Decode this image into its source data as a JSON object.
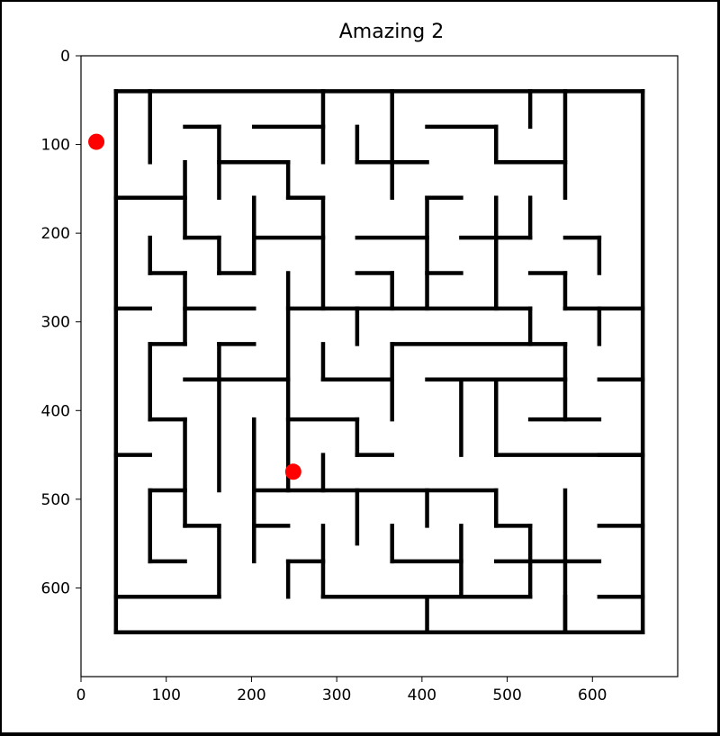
{
  "title": "Amazing 2",
  "axes": {
    "xlim": [
      0,
      700
    ],
    "ylim": [
      700,
      0
    ],
    "x_ticks": [
      0,
      100,
      200,
      300,
      400,
      500,
      600
    ],
    "y_ticks": [
      0,
      100,
      200,
      300,
      400,
      500,
      600
    ]
  },
  "maze": {
    "cell_size": 40.5,
    "origin": [
      41,
      99
    ],
    "cols": 15,
    "rows": 14,
    "wall_color": "#000000",
    "walls": [
      [
        41,
        99,
        659,
        99
      ],
      [
        41,
        659,
        659,
        659
      ],
      [
        41,
        160,
        41,
        659
      ],
      [
        659,
        99,
        659,
        659
      ],
      [
        81,
        99,
        81,
        120
      ],
      [
        81,
        99,
        81,
        120
      ],
      [
        81,
        99,
        81,
        120
      ],
      [
        81,
        99,
        81,
        120
      ],
      [
        81,
        99,
        81,
        120
      ],
      [
        81,
        99,
        81,
        120
      ],
      [
        81,
        99,
        81,
        120
      ],
      [
        81,
        99,
        81,
        120
      ],
      [
        81,
        99,
        81,
        120
      ],
      [
        81,
        99,
        81,
        120
      ],
      [
        81,
        99,
        81,
        120
      ],
      [
        81,
        99,
        81,
        120
      ],
      [
        81,
        99,
        81,
        120
      ]
    ],
    "segments": [
      [
        41,
        99,
        41,
        135
      ],
      [
        81,
        99,
        81,
        180
      ],
      [
        122,
        140,
        162,
        140
      ],
      [
        162,
        140,
        162,
        220
      ],
      [
        203,
        140,
        284,
        140
      ],
      [
        284,
        99,
        284,
        180
      ],
      [
        365,
        99,
        365,
        220
      ],
      [
        324,
        140,
        324,
        180
      ],
      [
        324,
        180,
        406,
        180
      ],
      [
        406,
        140,
        487,
        140
      ],
      [
        487,
        140,
        487,
        180
      ],
      [
        487,
        180,
        568,
        180
      ],
      [
        568,
        180,
        568,
        220
      ],
      [
        527,
        99,
        527,
        140
      ],
      [
        568,
        99,
        568,
        300
      ],
      [
        162,
        180,
        243,
        180
      ],
      [
        243,
        180,
        243,
        220
      ],
      [
        243,
        220,
        284,
        220
      ],
      [
        284,
        220,
        284,
        340
      ],
      [
        41,
        220,
        122,
        220
      ],
      [
        122,
        180,
        122,
        260
      ],
      [
        122,
        260,
        162,
        260
      ],
      [
        162,
        260,
        162,
        300
      ],
      [
        162,
        300,
        203,
        300
      ],
      [
        203,
        220,
        203,
        300
      ],
      [
        203,
        260,
        284,
        260
      ],
      [
        324,
        260,
        406,
        260
      ],
      [
        406,
        220,
        406,
        340
      ],
      [
        527,
        220,
        527,
        260
      ],
      [
        446,
        260,
        527,
        260
      ],
      [
        487,
        220,
        487,
        340
      ],
      [
        406,
        220,
        446,
        220
      ],
      [
        81,
        260,
        81,
        300
      ],
      [
        81,
        300,
        122,
        300
      ],
      [
        122,
        300,
        122,
        380
      ],
      [
        122,
        380,
        81,
        380
      ],
      [
        81,
        380,
        81,
        460
      ],
      [
        81,
        460,
        122,
        460
      ],
      [
        122,
        340,
        203,
        340
      ],
      [
        41,
        340,
        81,
        340
      ],
      [
        243,
        300,
        243,
        540
      ],
      [
        243,
        340,
        324,
        340
      ],
      [
        324,
        340,
        324,
        380
      ],
      [
        243,
        340,
        406,
        340
      ],
      [
        324,
        300,
        365,
        300
      ],
      [
        365,
        300,
        365,
        340
      ],
      [
        406,
        340,
        527,
        340
      ],
      [
        527,
        340,
        527,
        380
      ],
      [
        406,
        300,
        446,
        300
      ],
      [
        527,
        300,
        568,
        300
      ],
      [
        568,
        260,
        608,
        260
      ],
      [
        608,
        260,
        608,
        300
      ],
      [
        568,
        300,
        568,
        340
      ],
      [
        568,
        340,
        659,
        340
      ],
      [
        608,
        340,
        608,
        380
      ],
      [
        162,
        380,
        203,
        380
      ],
      [
        162,
        380,
        162,
        540
      ],
      [
        122,
        420,
        243,
        420
      ],
      [
        284,
        380,
        284,
        420
      ],
      [
        284,
        420,
        365,
        420
      ],
      [
        365,
        380,
        365,
        460
      ],
      [
        365,
        380,
        568,
        380
      ],
      [
        568,
        380,
        568,
        460
      ],
      [
        406,
        420,
        568,
        420
      ],
      [
        446,
        420,
        446,
        500
      ],
      [
        487,
        420,
        487,
        500
      ],
      [
        487,
        500,
        659,
        500
      ],
      [
        527,
        460,
        608,
        460
      ],
      [
        608,
        420,
        659,
        420
      ],
      [
        203,
        460,
        203,
        620
      ],
      [
        243,
        460,
        324,
        460
      ],
      [
        324,
        460,
        324,
        500
      ],
      [
        324,
        500,
        365,
        500
      ],
      [
        284,
        500,
        284,
        540
      ],
      [
        41,
        500,
        81,
        500
      ],
      [
        608,
        500,
        659,
        500
      ],
      [
        81,
        540,
        122,
        540
      ],
      [
        81,
        540,
        81,
        620
      ],
      [
        81,
        620,
        122,
        620
      ],
      [
        122,
        460,
        122,
        580
      ],
      [
        122,
        580,
        162,
        580
      ],
      [
        162,
        580,
        162,
        659
      ],
      [
        41,
        659,
        162,
        659
      ],
      [
        203,
        540,
        487,
        540
      ],
      [
        487,
        540,
        487,
        580
      ],
      [
        203,
        580,
        243,
        580
      ],
      [
        284,
        580,
        284,
        659
      ],
      [
        284,
        659,
        527,
        659
      ],
      [
        527,
        620,
        527,
        659
      ],
      [
        324,
        540,
        324,
        600
      ],
      [
        243,
        620,
        284,
        620
      ],
      [
        243,
        620,
        243,
        659
      ],
      [
        365,
        580,
        365,
        620
      ],
      [
        365,
        620,
        446,
        620
      ],
      [
        446,
        580,
        446,
        659
      ],
      [
        406,
        540,
        406,
        580
      ],
      [
        487,
        580,
        527,
        580
      ],
      [
        487,
        620,
        608,
        620
      ],
      [
        527,
        580,
        527,
        620
      ],
      [
        568,
        540,
        568,
        659
      ],
      [
        608,
        580,
        659,
        580
      ],
      [
        608,
        659,
        608,
        700
      ],
      [
        406,
        659,
        406,
        700
      ],
      [
        608,
        659,
        659,
        659
      ]
    ]
  },
  "markers": {
    "color": "#ff0000",
    "points": [
      [
        18,
        97
      ],
      [
        249,
        469
      ]
    ]
  }
}
